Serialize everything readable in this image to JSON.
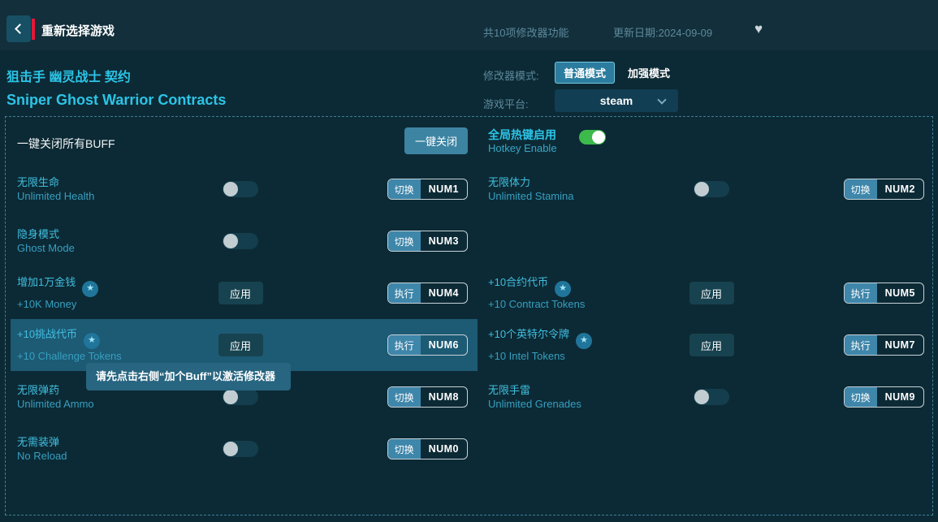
{
  "colors": {
    "background": "#0c2a35",
    "topbar_bg": "#122f3b",
    "accent_cyan": "#2cc4e7",
    "muted_cyan": "#5d8a9c",
    "button_blue": "#3d84a3",
    "mode_selected_bg": "#2b7c9e",
    "row_highlight": "#1d5a74",
    "tooltip_bg": "#276580",
    "hotkey_action_bg": "#3e86aa",
    "toggle_on_green": "#3cba4c",
    "red_accent": "#e31837"
  },
  "topbar": {
    "title": "重新选择游戏",
    "feature_count": "共10项修改器功能",
    "update_date": "更新日期:2024-09-09",
    "heart_icon": "♥"
  },
  "game": {
    "title_zh": "狙击手 幽灵战士 契约",
    "title_en": "Sniper Ghost Warrior Contracts"
  },
  "settings": {
    "mode_label": "修改器模式:",
    "mode_normal": "普通模式",
    "mode_enhanced": "加强模式",
    "selected_mode": "普通模式",
    "platform_label": "游戏平台:",
    "platform_value": "steam"
  },
  "panel": {
    "close_all_label": "一键关闭所有BUFF",
    "close_all_button": "一键关闭",
    "hotkey_zh": "全局热键启用",
    "hotkey_en": "Hotkey Enable",
    "hotkey_state": "on",
    "apply_label": "应用",
    "star_icon": "★",
    "tooltip": "请先点击右侧“加个Buff”以激活修改器",
    "features": [
      {
        "zh": "无限生命",
        "en": "Unlimited Health",
        "type": "toggle",
        "state": "off",
        "action": "切换",
        "key": "NUM1",
        "star": false
      },
      {
        "zh": "隐身模式",
        "en": "Ghost Mode",
        "type": "toggle",
        "state": "off",
        "action": "切换",
        "key": "NUM3",
        "star": false
      },
      {
        "zh": "增加1万金钱",
        "en": "+10K Money",
        "type": "apply",
        "action": "执行",
        "key": "NUM4",
        "star": true
      },
      {
        "zh": "+10挑战代币",
        "en": "+10 Challenge Tokens",
        "type": "apply",
        "action": "执行",
        "key": "NUM6",
        "star": true,
        "highlighted": true
      },
      {
        "zh": "无限弹药",
        "en": "Unlimited Ammo",
        "type": "toggle",
        "state": "off",
        "action": "切换",
        "key": "NUM8",
        "star": false
      },
      {
        "zh": "无需装弹",
        "en": "No Reload",
        "type": "toggle",
        "state": "off",
        "action": "切换",
        "key": "NUM0",
        "star": false
      },
      {
        "zh": "无限体力",
        "en": "Unlimited Stamina",
        "type": "toggle",
        "state": "off",
        "action": "切换",
        "key": "NUM2",
        "star": false
      },
      {
        "zh": "+10合约代币",
        "en": "+10 Contract Tokens",
        "type": "apply",
        "action": "执行",
        "key": "NUM5",
        "star": true
      },
      {
        "zh": "+10个英特尔令牌",
        "en": "+10 Intel Tokens",
        "type": "apply",
        "action": "执行",
        "key": "NUM7",
        "star": true
      },
      {
        "zh": "无限手雷",
        "en": "Unlimited Grenades",
        "type": "toggle",
        "state": "off",
        "action": "切换",
        "key": "NUM9",
        "star": false
      }
    ]
  }
}
